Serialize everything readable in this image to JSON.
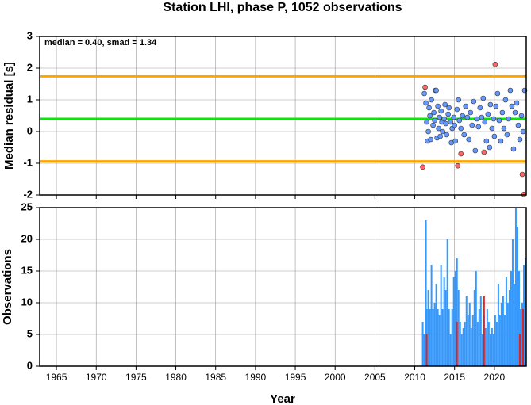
{
  "chart_data": [
    {
      "type": "scatter",
      "title": "Station LHI, phase P, 1052 observations",
      "y_label": "Median residual [s]",
      "annotation": "median = 0.40, smad = 1.34",
      "xlim": [
        1962.9,
        2024
      ],
      "xticks": [
        1965,
        1970,
        1975,
        1980,
        1985,
        1990,
        1995,
        2000,
        2005,
        2010,
        2015,
        2020
      ],
      "ylim": [
        -2,
        3
      ],
      "yticks": [
        -2,
        -1,
        0,
        1,
        2,
        3
      ],
      "grid": true,
      "hlines": [
        {
          "value": 0.4,
          "color": "#00ee00"
        },
        {
          "value": 1.74,
          "color": "#ffa500"
        },
        {
          "value": -0.94,
          "color": "#ffa500"
        }
      ],
      "series": [
        {
          "color": "#6699ff",
          "x": [
            2011.2,
            2011.4,
            2011.5,
            2011.6,
            2011.7,
            2011.8,
            2011.9,
            2012.0,
            2012.1,
            2012.3,
            2012.4,
            2012.5,
            2012.6,
            2012.7,
            2012.8,
            2012.9,
            2013.0,
            2013.1,
            2013.2,
            2013.3,
            2013.4,
            2013.5,
            2013.7,
            2013.8,
            2013.9,
            2014.0,
            2014.2,
            2014.3,
            2014.5,
            2014.6,
            2014.7,
            2014.9,
            2015.0,
            2015.1,
            2015.3,
            2015.5,
            2015.6,
            2015.8,
            2016.0,
            2016.2,
            2016.4,
            2016.6,
            2016.8,
            2017.0,
            2017.2,
            2017.4,
            2017.6,
            2017.8,
            2018.0,
            2018.2,
            2018.4,
            2018.6,
            2018.8,
            2019.0,
            2019.2,
            2019.4,
            2019.5,
            2019.7,
            2019.9,
            2020.0,
            2020.2,
            2020.4,
            2020.6,
            2020.8,
            2021.0,
            2021.2,
            2021.4,
            2021.6,
            2021.8,
            2022.0,
            2022.2,
            2022.4,
            2022.6,
            2022.8,
            2023.0,
            2023.2,
            2023.4,
            2023.6,
            2023.8
          ],
          "values": [
            1.2,
            0.9,
            0.3,
            -0.3,
            0.0,
            0.75,
            0.5,
            -0.25,
            1.0,
            0.2,
            0.6,
            0.35,
            1.3,
            1.3,
            -0.2,
            0.8,
            0.1,
            0.45,
            -0.15,
            0.65,
            0.3,
            0.0,
            0.4,
            0.85,
            0.25,
            -0.1,
            0.55,
            0.75,
            0.3,
            -0.35,
            0.1,
            0.45,
            0.2,
            -0.3,
            0.7,
            1.0,
            0.35,
            0.1,
            0.5,
            -0.1,
            0.8,
            0.45,
            -0.25,
            0.6,
            0.2,
            0.95,
            -0.6,
            0.4,
            0.15,
            0.75,
            0.45,
            1.05,
            0.3,
            -0.3,
            0.55,
            -0.5,
            0.85,
            0.1,
            0.4,
            -0.15,
            0.8,
            1.2,
            0.35,
            -0.3,
            0.6,
            0.1,
            1.0,
            -0.1,
            0.4,
            1.3,
            0.8,
            -0.55,
            0.6,
            0.9,
            0.2,
            -0.25,
            0.5,
            0.0,
            1.3
          ]
        },
        {
          "color": "#ff6666",
          "x": [
            2011.3,
            2011.0,
            2015.4,
            2015.8,
            2018.7,
            2020.1,
            2023.5,
            2023.7
          ],
          "values": [
            1.4,
            -1.12,
            -1.08,
            -0.7,
            -0.65,
            2.12,
            -1.35,
            -1.98
          ]
        }
      ]
    },
    {
      "type": "bar",
      "y_label": "Observations",
      "x_label": "Year",
      "xlim": [
        1962.9,
        2024
      ],
      "xticks": [
        1965,
        1970,
        1975,
        1980,
        1985,
        1990,
        1995,
        2000,
        2005,
        2010,
        2015,
        2020
      ],
      "ylim": [
        0,
        25
      ],
      "yticks": [
        0,
        5,
        10,
        15,
        20,
        25
      ],
      "grid": true,
      "series": [
        {
          "color": "#3399ff",
          "x": [
            2011.0,
            2011.2,
            2011.4,
            2011.5,
            2011.7,
            2011.9,
            2012.1,
            2012.3,
            2012.5,
            2012.7,
            2012.9,
            2013.1,
            2013.3,
            2013.5,
            2013.7,
            2013.9,
            2014.1,
            2014.3,
            2014.5,
            2014.7,
            2014.9,
            2015.1,
            2015.3,
            2015.5,
            2015.7,
            2015.9,
            2016.1,
            2016.3,
            2016.5,
            2016.7,
            2016.9,
            2017.1,
            2017.3,
            2017.5,
            2017.7,
            2017.9,
            2018.1,
            2018.3,
            2018.5,
            2018.7,
            2018.9,
            2019.1,
            2019.3,
            2019.5,
            2019.7,
            2019.9,
            2020.1,
            2020.3,
            2020.5,
            2020.7,
            2020.9,
            2021.1,
            2021.3,
            2021.5,
            2021.7,
            2021.9,
            2022.1,
            2022.3,
            2022.5,
            2022.7,
            2022.9,
            2023.1,
            2023.3,
            2023.5,
            2023.7,
            2023.9
          ],
          "values": [
            7,
            5,
            23,
            9,
            12,
            9,
            16,
            9,
            10,
            13,
            9,
            8,
            16,
            9,
            14,
            12,
            20,
            9,
            5,
            9,
            14,
            15,
            17,
            12,
            7,
            5,
            6,
            7,
            11,
            8,
            10,
            6,
            8,
            12,
            15,
            7,
            9,
            11,
            5,
            8,
            6,
            9,
            7,
            5,
            6,
            5,
            8,
            7,
            13,
            8,
            10,
            11,
            8,
            14,
            10,
            12,
            15,
            20,
            13,
            25,
            22,
            15,
            9,
            10,
            16,
            17
          ]
        },
        {
          "color": "#dd2222",
          "x": [
            2011.5,
            2015.3,
            2018.7,
            2023.2,
            2023.6
          ],
          "values": [
            5,
            7,
            11,
            5,
            9
          ]
        }
      ]
    }
  ]
}
